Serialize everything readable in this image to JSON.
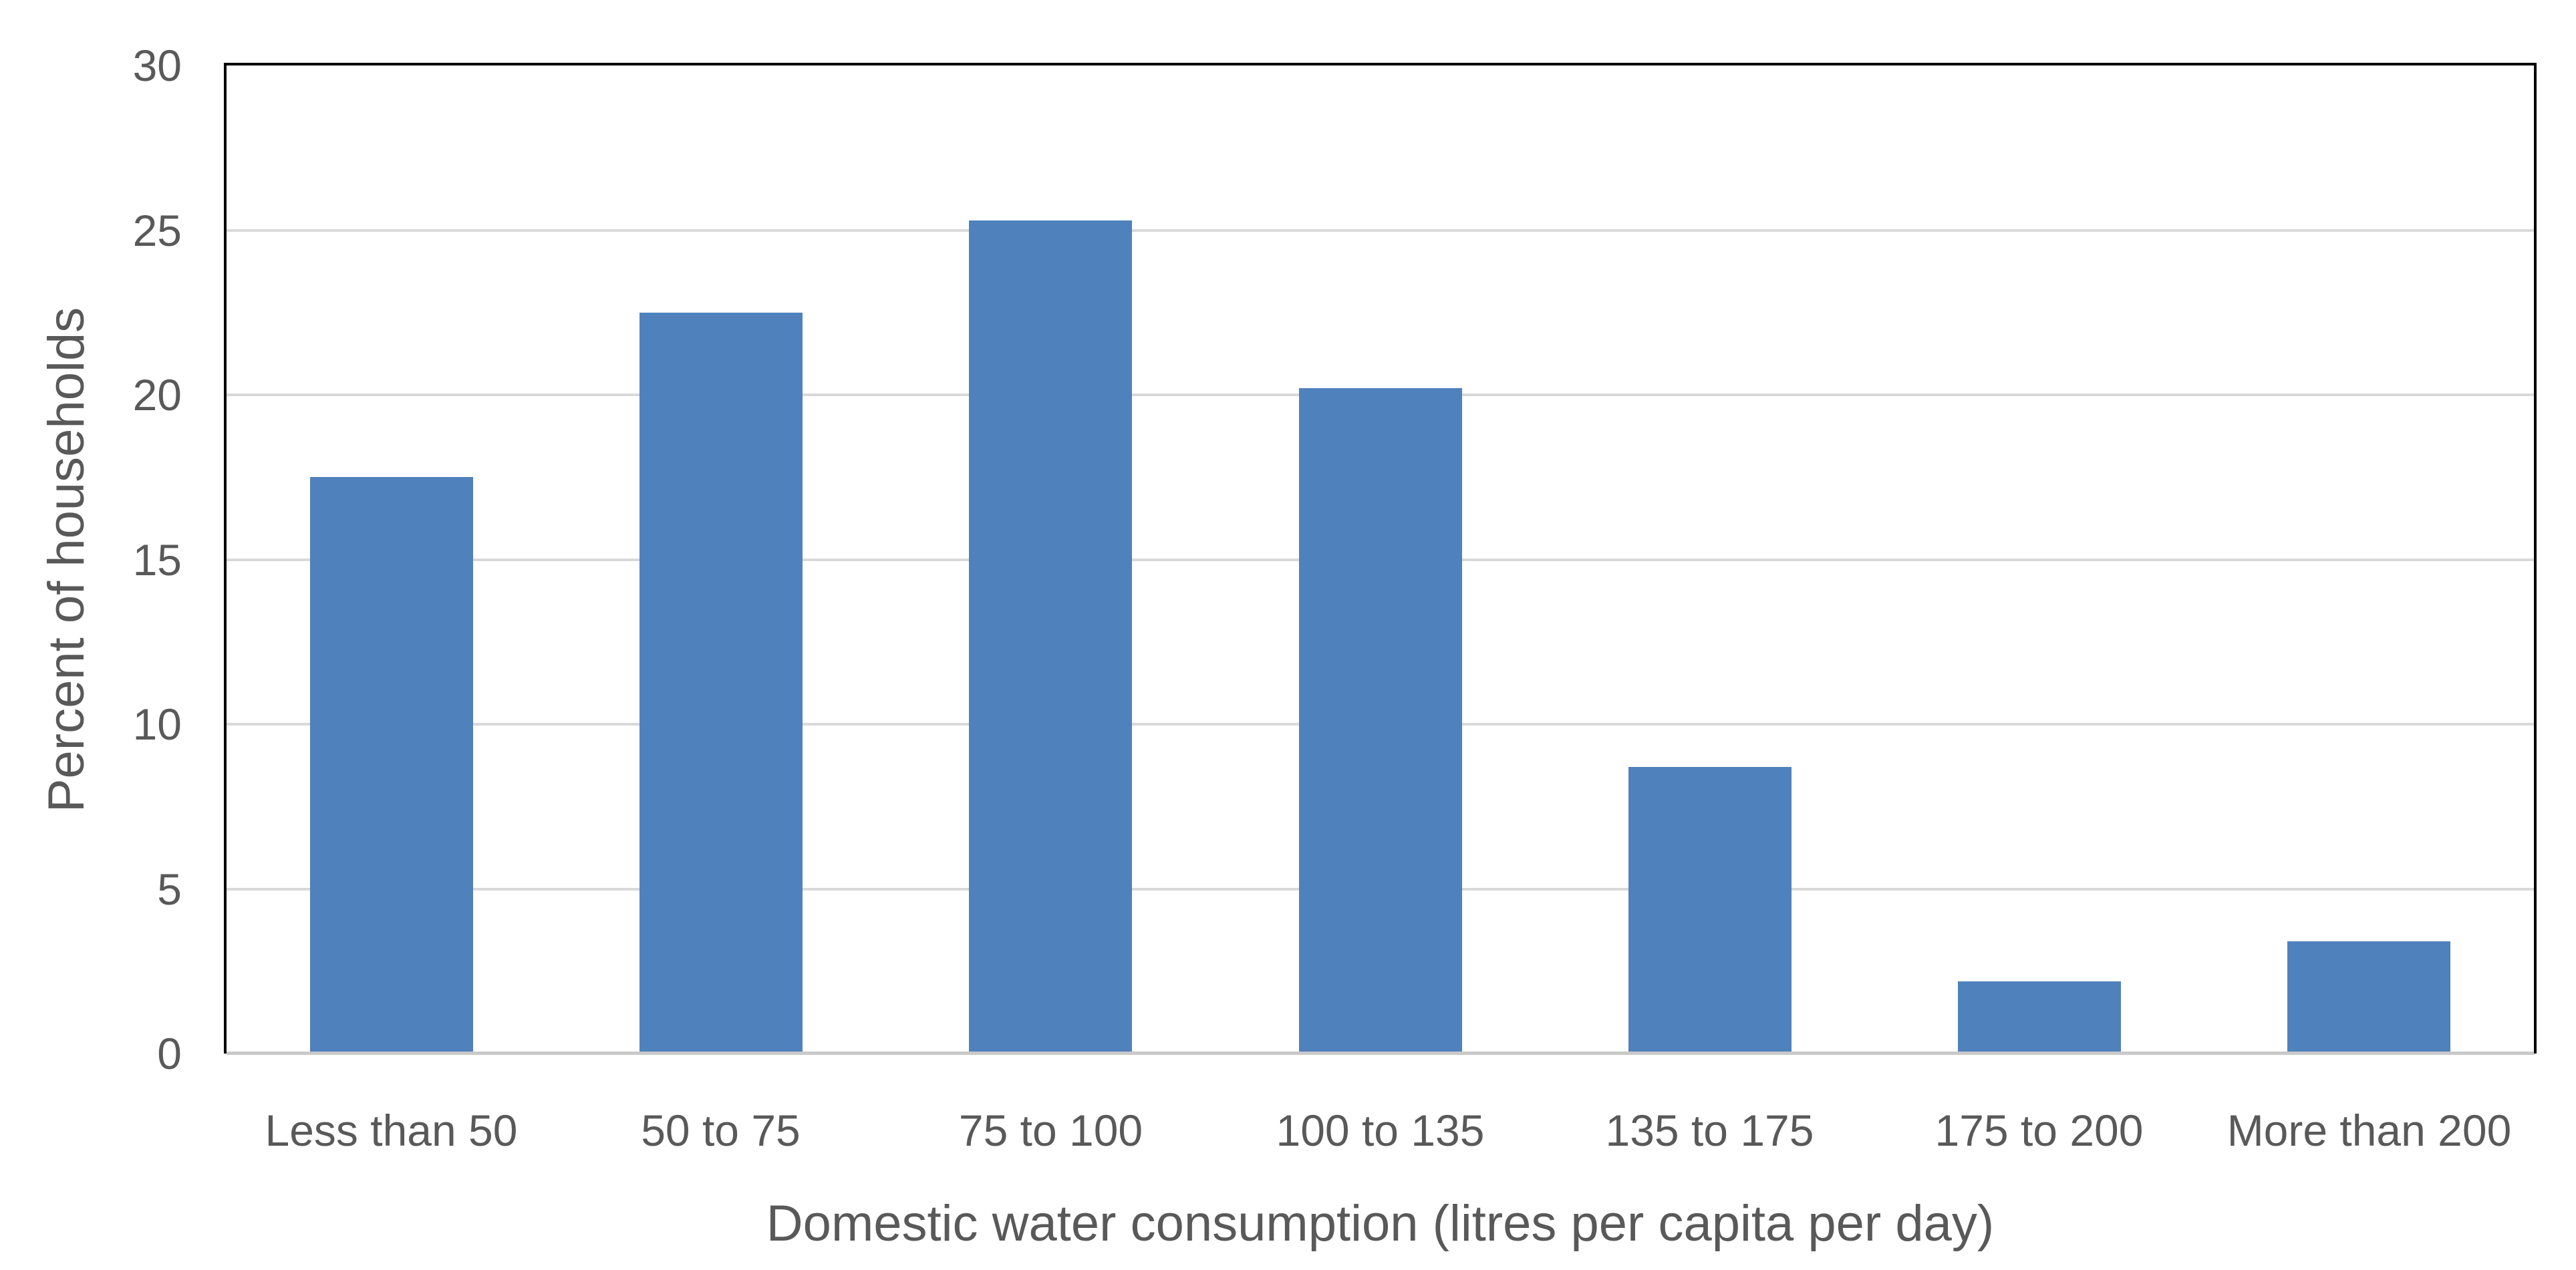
{
  "chart_data": {
    "type": "bar",
    "title": "",
    "xlabel": "Domestic water consumption (litres per capita per day)",
    "ylabel": "Percent of households",
    "categories": [
      "Less than 50",
      "50 to 75",
      "75 to 100",
      "100 to 135",
      "135 to 175",
      "175 to 200",
      "More than 200"
    ],
    "values": [
      17.5,
      22.5,
      25.3,
      20.2,
      8.7,
      2.2,
      3.4
    ],
    "ylim": [
      0,
      30
    ],
    "yticks": [
      0,
      5,
      10,
      15,
      20,
      25,
      30
    ],
    "grid": "horizontal-major",
    "legend_position": "none",
    "colors": {
      "bar": "#4F81BD",
      "gridline": "#D9D9D9",
      "baseline": "#C9C9C9",
      "axis_border": "#000000",
      "text": "#595959"
    }
  }
}
